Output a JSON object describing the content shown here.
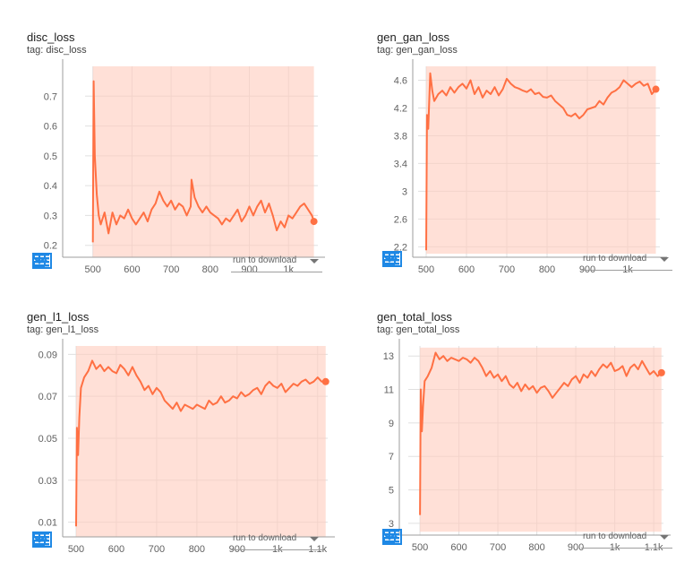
{
  "colors": {
    "accent": "#ff7043",
    "band": "#ffccbc",
    "icon": "#1e88e5",
    "grid": "#e0e0e0"
  },
  "download_label": "run to download",
  "toolbar_icons": [
    "fullscreen-icon",
    "data-table-icon",
    "fit-domain-icon",
    "download-icon"
  ],
  "cards": [
    {
      "title": "disc_loss",
      "tag": "tag: disc_loss"
    },
    {
      "title": "gen_gan_loss",
      "tag": "tag: gen_gan_loss"
    },
    {
      "title": "gen_l1_loss",
      "tag": "tag: gen_l1_loss"
    },
    {
      "title": "gen_total_loss",
      "tag": "tag: gen_total_loss"
    }
  ],
  "chart_data": [
    {
      "type": "line",
      "title": "disc_loss",
      "xlim": [
        480,
        1075
      ],
      "ylim": [
        0.16,
        0.8
      ],
      "xticks": [
        500,
        600,
        700,
        800,
        900,
        1000
      ],
      "xtick_labels": [
        "500",
        "600",
        "700",
        "800",
        "900",
        "1k"
      ],
      "yticks": [
        0.2,
        0.3,
        0.4,
        0.5,
        0.6,
        0.7
      ],
      "ytick_labels": [
        "0.2",
        "0.3",
        "0.4",
        "0.5",
        "0.6",
        "0.7"
      ],
      "band": [
        0.16,
        0.8
      ],
      "x": [
        500,
        502,
        505,
        510,
        515,
        520,
        530,
        540,
        550,
        560,
        570,
        580,
        590,
        600,
        610,
        620,
        630,
        640,
        650,
        660,
        670,
        680,
        690,
        700,
        710,
        720,
        730,
        740,
        750,
        752,
        760,
        770,
        780,
        790,
        800,
        810,
        820,
        830,
        840,
        850,
        860,
        870,
        880,
        890,
        900,
        910,
        920,
        930,
        940,
        950,
        960,
        970,
        980,
        990,
        1000,
        1010,
        1020,
        1030,
        1040,
        1050,
        1060,
        1065
      ],
      "y": [
        0.21,
        0.75,
        0.5,
        0.37,
        0.3,
        0.27,
        0.31,
        0.24,
        0.31,
        0.27,
        0.3,
        0.29,
        0.32,
        0.29,
        0.27,
        0.29,
        0.31,
        0.28,
        0.32,
        0.34,
        0.38,
        0.35,
        0.33,
        0.35,
        0.32,
        0.34,
        0.33,
        0.3,
        0.33,
        0.42,
        0.36,
        0.33,
        0.31,
        0.33,
        0.31,
        0.3,
        0.29,
        0.27,
        0.29,
        0.28,
        0.3,
        0.32,
        0.28,
        0.3,
        0.33,
        0.3,
        0.33,
        0.35,
        0.31,
        0.34,
        0.3,
        0.25,
        0.28,
        0.26,
        0.3,
        0.29,
        0.31,
        0.33,
        0.34,
        0.32,
        0.3,
        0.28
      ]
    },
    {
      "type": "line",
      "title": "gen_gan_loss",
      "xlim": [
        480,
        1080
      ],
      "ylim": [
        2.05,
        4.8
      ],
      "xticks": [
        500,
        600,
        700,
        800,
        900,
        1000
      ],
      "xtick_labels": [
        "500",
        "600",
        "700",
        "800",
        "900",
        "1k"
      ],
      "yticks": [
        2.2,
        2.6,
        3,
        3.4,
        3.8,
        4.2,
        4.6
      ],
      "ytick_labels": [
        "2.2",
        "2.6",
        "3",
        "3.4",
        "3.8",
        "4.2",
        "4.6"
      ],
      "band": [
        2.1,
        4.8
      ],
      "x": [
        500,
        502,
        505,
        510,
        515,
        520,
        530,
        540,
        550,
        560,
        570,
        580,
        590,
        600,
        610,
        620,
        630,
        640,
        650,
        660,
        670,
        680,
        690,
        700,
        710,
        720,
        730,
        740,
        750,
        760,
        770,
        780,
        790,
        800,
        810,
        820,
        830,
        840,
        850,
        860,
        870,
        880,
        890,
        900,
        910,
        920,
        930,
        940,
        950,
        960,
        970,
        980,
        990,
        1000,
        1010,
        1020,
        1030,
        1040,
        1050,
        1060,
        1070
      ],
      "y": [
        2.15,
        4.1,
        3.9,
        4.7,
        4.45,
        4.3,
        4.4,
        4.45,
        4.38,
        4.5,
        4.42,
        4.5,
        4.55,
        4.48,
        4.6,
        4.4,
        4.5,
        4.35,
        4.45,
        4.4,
        4.5,
        4.38,
        4.47,
        4.62,
        4.55,
        4.5,
        4.48,
        4.45,
        4.43,
        4.47,
        4.4,
        4.42,
        4.36,
        4.35,
        4.38,
        4.3,
        4.25,
        4.2,
        4.1,
        4.08,
        4.12,
        4.05,
        4.1,
        4.18,
        4.2,
        4.22,
        4.3,
        4.25,
        4.35,
        4.42,
        4.45,
        4.5,
        4.6,
        4.55,
        4.5,
        4.55,
        4.58,
        4.52,
        4.55,
        4.4,
        4.47
      ]
    },
    {
      "type": "line",
      "title": "gen_l1_loss",
      "xlim": [
        480,
        1125
      ],
      "ylim": [
        0.003,
        0.094
      ],
      "xticks": [
        500,
        600,
        700,
        800,
        900,
        1000,
        1100
      ],
      "xtick_labels": [
        "500",
        "600",
        "700",
        "800",
        "900",
        "1k",
        "1.1k"
      ],
      "yticks": [
        0.01,
        0.03,
        0.05,
        0.07,
        0.09
      ],
      "ytick_labels": [
        "0.01",
        "0.03",
        "0.05",
        "0.07",
        "0.09"
      ],
      "band": [
        0.003,
        0.094
      ],
      "x": [
        500,
        502,
        505,
        508,
        512,
        520,
        530,
        540,
        550,
        560,
        570,
        580,
        590,
        600,
        610,
        620,
        630,
        640,
        650,
        660,
        670,
        680,
        690,
        700,
        710,
        720,
        730,
        740,
        750,
        760,
        770,
        780,
        790,
        800,
        810,
        820,
        830,
        840,
        850,
        860,
        870,
        880,
        890,
        900,
        910,
        920,
        930,
        940,
        950,
        960,
        970,
        980,
        990,
        1000,
        1010,
        1020,
        1030,
        1040,
        1050,
        1060,
        1070,
        1080,
        1090,
        1100,
        1110,
        1120
      ],
      "y": [
        0.008,
        0.055,
        0.042,
        0.06,
        0.074,
        0.079,
        0.082,
        0.087,
        0.083,
        0.085,
        0.082,
        0.084,
        0.082,
        0.081,
        0.085,
        0.083,
        0.08,
        0.084,
        0.08,
        0.077,
        0.073,
        0.075,
        0.071,
        0.074,
        0.072,
        0.068,
        0.066,
        0.064,
        0.067,
        0.063,
        0.066,
        0.065,
        0.064,
        0.066,
        0.065,
        0.064,
        0.068,
        0.066,
        0.067,
        0.07,
        0.067,
        0.068,
        0.07,
        0.069,
        0.072,
        0.07,
        0.071,
        0.073,
        0.074,
        0.071,
        0.075,
        0.077,
        0.075,
        0.074,
        0.076,
        0.072,
        0.074,
        0.076,
        0.075,
        0.077,
        0.078,
        0.076,
        0.077,
        0.079,
        0.077,
        0.077
      ]
    },
    {
      "type": "line",
      "title": "gen_total_loss",
      "xlim": [
        470,
        1125
      ],
      "ylim": [
        2.3,
        13.6
      ],
      "xticks": [
        500,
        600,
        700,
        800,
        900,
        1000,
        1100
      ],
      "xtick_labels": [
        "500",
        "600",
        "700",
        "800",
        "900",
        "1k",
        "1.1k"
      ],
      "yticks": [
        3,
        5,
        7,
        9,
        11,
        13
      ],
      "ytick_labels": [
        "3",
        "5",
        "7",
        "9",
        "11",
        "13"
      ],
      "band": [
        2.5,
        13.5
      ],
      "x": [
        500,
        502,
        505,
        508,
        512,
        520,
        530,
        540,
        550,
        560,
        570,
        580,
        590,
        600,
        610,
        620,
        630,
        640,
        650,
        660,
        670,
        680,
        690,
        700,
        710,
        720,
        730,
        740,
        750,
        760,
        770,
        780,
        790,
        800,
        810,
        820,
        830,
        840,
        850,
        860,
        870,
        880,
        890,
        900,
        910,
        920,
        930,
        940,
        950,
        960,
        970,
        980,
        990,
        1000,
        1010,
        1020,
        1030,
        1040,
        1050,
        1060,
        1070,
        1080,
        1090,
        1100,
        1110,
        1120
      ],
      "y": [
        3.5,
        11,
        8.5,
        10,
        11.5,
        11.8,
        12.3,
        13.2,
        12.8,
        13,
        12.7,
        12.9,
        12.8,
        12.7,
        12.9,
        12.8,
        12.6,
        12.9,
        12.7,
        12.3,
        11.8,
        12.1,
        11.7,
        11.9,
        11.5,
        11.8,
        11.3,
        11.1,
        11.4,
        10.9,
        11.3,
        11,
        11.2,
        10.8,
        11.1,
        11.2,
        10.9,
        10.5,
        10.8,
        11.1,
        11.4,
        11.2,
        11.6,
        11.8,
        11.4,
        11.9,
        11.7,
        12.1,
        11.8,
        12.2,
        12.5,
        12.3,
        12.6,
        12.1,
        12.2,
        12.4,
        11.8,
        12.3,
        12.5,
        12.2,
        12.7,
        12.3,
        11.9,
        12.1,
        11.8,
        12
      ]
    }
  ]
}
